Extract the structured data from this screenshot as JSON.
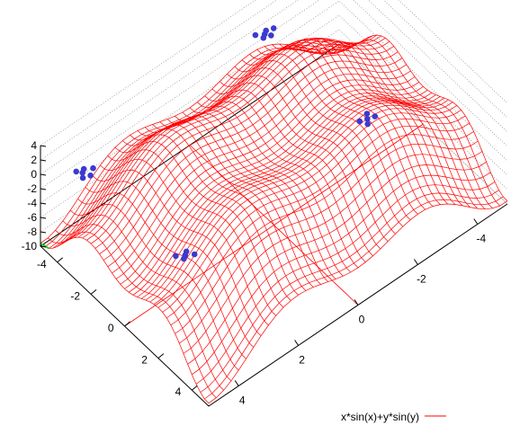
{
  "chart_data": {
    "type": "surface",
    "title": "",
    "function": "x*sin(x)+y*sin(y)",
    "x_range": [
      -5,
      5
    ],
    "y_range": [
      -5,
      5
    ],
    "z_range": [
      -10,
      4
    ],
    "z_ticks": [
      "4",
      "2",
      "0",
      "-2",
      "-4",
      "-6",
      "-8",
      "-10"
    ],
    "x_ticks": [
      "-4",
      "-2",
      "0",
      "2",
      "4"
    ],
    "y_ticks": [
      "-4",
      "-2",
      "0",
      "2",
      "4"
    ],
    "grid_lines": [
      -4,
      -2,
      0,
      2,
      4
    ],
    "series": [
      {
        "name": "x*sin(x)+y*sin(y)",
        "color": "#ff0000"
      }
    ],
    "points_color": "#3a3ad0",
    "point_clusters": [
      {
        "x": -4.1,
        "y": 2.0,
        "z": 1.8
      },
      {
        "x": -4.2,
        "y": 2.1,
        "z": 1.8
      },
      {
        "x": -4.0,
        "y": 1.9,
        "z": 1.8
      },
      {
        "x": -4.3,
        "y": 1.8,
        "z": 1.8
      },
      {
        "x": -4.1,
        "y": 2.3,
        "z": 1.8
      },
      {
        "x": -3.9,
        "y": 2.1,
        "z": 1.8
      },
      {
        "x": 2.0,
        "y": -4.1,
        "z": 1.8
      },
      {
        "x": 2.1,
        "y": -4.2,
        "z": 1.8
      },
      {
        "x": 1.9,
        "y": -4.0,
        "z": 1.8
      },
      {
        "x": 2.2,
        "y": -3.9,
        "z": 1.8
      },
      {
        "x": 1.8,
        "y": -4.3,
        "z": 1.8
      },
      {
        "x": 2.0,
        "y": 2.0,
        "z": 3.6
      },
      {
        "x": 2.1,
        "y": 2.2,
        "z": 3.6
      },
      {
        "x": 1.9,
        "y": 1.8,
        "z": 3.6
      },
      {
        "x": 2.2,
        "y": 1.9,
        "z": 3.6
      },
      {
        "x": 1.8,
        "y": 2.1,
        "z": 3.6
      },
      {
        "x": -4.1,
        "y": -4.1,
        "z": -0.3
      },
      {
        "x": -4.2,
        "y": -4.0,
        "z": -0.3
      },
      {
        "x": -3.9,
        "y": -4.2,
        "z": -0.3
      },
      {
        "x": -4.0,
        "y": -3.8,
        "z": -0.3
      },
      {
        "x": -4.3,
        "y": -4.2,
        "z": -0.3
      },
      {
        "x": -3.8,
        "y": -4.0,
        "z": -0.3
      }
    ],
    "legend": {
      "position": "bottom-right",
      "label": "x*sin(x)+y*sin(y)"
    }
  }
}
